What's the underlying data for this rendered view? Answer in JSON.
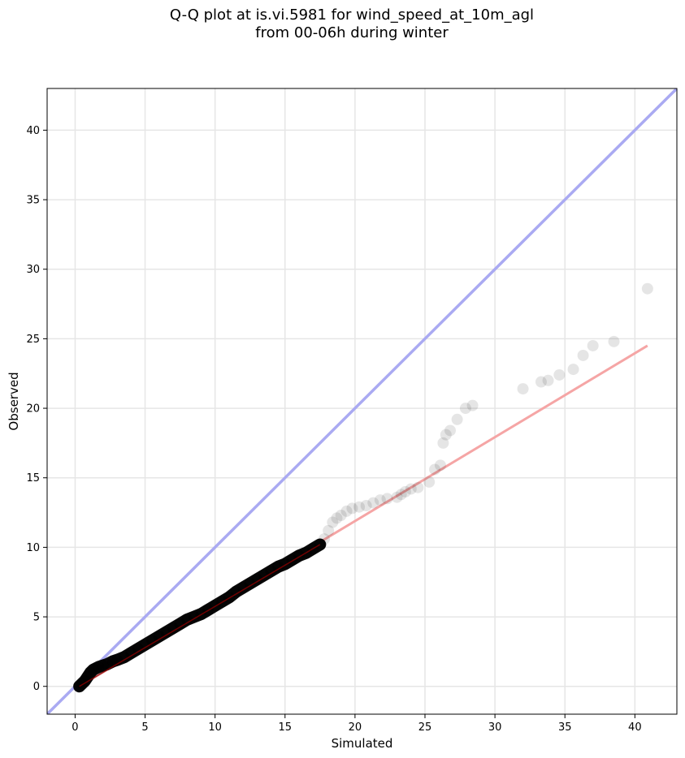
{
  "chart_data": {
    "type": "scatter",
    "title_lines": [
      "Q-Q plot at is.vi.5981 for wind_speed_at_10m_agl",
      "from 00-06h during winter"
    ],
    "xlabel": "Simulated",
    "ylabel": "Observed",
    "xlim": [
      -2,
      43
    ],
    "ylim": [
      -2,
      43
    ],
    "xticks": [
      0,
      5,
      10,
      15,
      20,
      25,
      30,
      35,
      40
    ],
    "yticks": [
      0,
      5,
      10,
      15,
      20,
      25,
      30,
      35,
      40
    ],
    "grid": true,
    "colors": {
      "identity_line": "#aaaaf2",
      "fit_line": "#f5a5a5",
      "points": "#000000",
      "dense_core": "#8b0000"
    },
    "identity_line": {
      "x": [
        -2,
        43
      ],
      "y": [
        -2,
        43
      ]
    },
    "fit_line": {
      "x": [
        0.3,
        40.9
      ],
      "y": [
        0.0,
        24.5
      ]
    },
    "dense_segment": {
      "x": [
        0.3,
        17.5
      ],
      "y": [
        0.0,
        10.2
      ]
    },
    "series": [
      {
        "x": [
          0.3,
          0.5,
          0.7,
          0.9,
          1.1,
          1.3,
          1.5,
          1.7,
          2.0,
          2.3,
          2.7,
          3.0,
          3.5,
          4.0,
          4.5,
          5.0,
          5.5,
          6.0,
          6.5,
          7.0,
          7.5,
          8.0,
          8.5,
          9.0,
          9.5,
          10.0,
          10.5,
          11.0,
          11.5,
          12.0,
          12.5,
          13.0,
          13.5,
          14.0,
          14.5,
          15.0,
          15.5,
          16.0,
          16.5,
          17.0,
          17.5,
          17.8,
          18.1,
          18.4,
          18.7,
          19.0,
          19.4,
          19.8,
          20.3,
          20.8,
          21.3,
          21.8,
          22.3,
          23.0,
          23.3,
          23.6,
          24.0,
          24.5,
          25.3,
          25.7,
          26.1,
          26.3,
          26.5,
          26.8,
          27.3,
          27.9,
          28.4,
          32.0,
          33.3,
          33.8,
          34.6,
          35.6,
          36.3,
          37.0,
          38.5,
          40.9
        ],
        "y": [
          0.0,
          0.2,
          0.4,
          0.7,
          1.0,
          1.2,
          1.3,
          1.4,
          1.5,
          1.6,
          1.8,
          1.9,
          2.1,
          2.4,
          2.7,
          3.0,
          3.3,
          3.6,
          3.9,
          4.2,
          4.5,
          4.8,
          5.0,
          5.2,
          5.5,
          5.8,
          6.1,
          6.4,
          6.8,
          7.1,
          7.4,
          7.7,
          8.0,
          8.3,
          8.6,
          8.8,
          9.1,
          9.4,
          9.6,
          9.9,
          10.2,
          10.6,
          11.2,
          11.8,
          12.1,
          12.3,
          12.6,
          12.8,
          12.9,
          13.0,
          13.2,
          13.4,
          13.5,
          13.6,
          13.8,
          14.0,
          14.2,
          14.3,
          14.7,
          15.6,
          15.9,
          17.5,
          18.1,
          18.4,
          19.2,
          20.0,
          20.2,
          21.4,
          21.9,
          22.0,
          22.4,
          22.8,
          23.8,
          24.5,
          24.8,
          28.6
        ]
      }
    ]
  }
}
